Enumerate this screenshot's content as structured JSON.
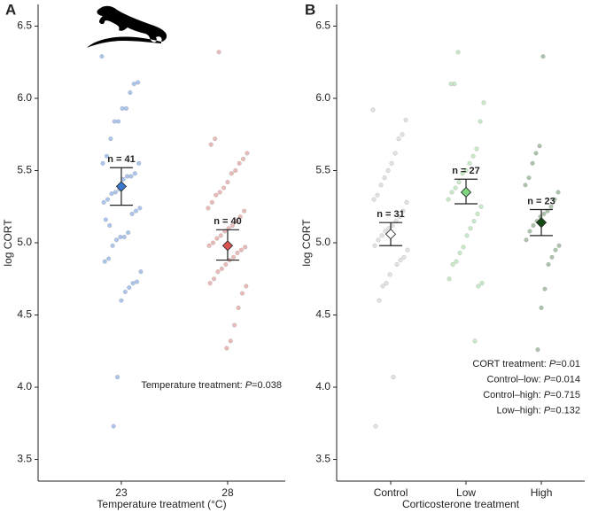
{
  "chart_data": [
    {
      "type": "strip",
      "title": "A",
      "xlabel": "Temperature treatment (°C)",
      "ylabel": "log CORT",
      "ylim": [
        3.35,
        6.65
      ],
      "yticks": [
        3.5,
        {
          "value": 4,
          "label": "4.0"
        },
        4.5,
        {
          "value": 5,
          "label": "5.0"
        },
        5.5,
        {
          "value": 6,
          "label": "6.0"
        },
        6.5
      ],
      "categories": [
        "23",
        "28"
      ],
      "groups": [
        {
          "color": "#3a78d0",
          "point_color": "#8fb2e6",
          "n_label": "n = 41",
          "mean": 5.39,
          "ci": [
            5.26,
            5.52
          ],
          "points": [
            6.29,
            6.11,
            6.1,
            6.04,
            5.93,
            5.93,
            5.84,
            5.84,
            5.72,
            5.6,
            5.55,
            5.55,
            5.48,
            5.46,
            5.46,
            5.44,
            5.37,
            5.35,
            5.34,
            5.3,
            5.28,
            5.24,
            5.22,
            5.2,
            5.07,
            5.04,
            5.04,
            5.02,
            4.98,
            4.89,
            4.87,
            4.8,
            4.73,
            4.72,
            4.69,
            4.66,
            4.6,
            4.07,
            3.73,
            5.12,
            5.16
          ]
        },
        {
          "color": "#d9534f",
          "point_color": "#e3a3a0",
          "n_label": "n = 40",
          "mean": 4.98,
          "ci": [
            4.88,
            5.09
          ],
          "points": [
            6.32,
            5.72,
            5.68,
            5.62,
            5.58,
            5.55,
            5.5,
            5.48,
            5.42,
            5.38,
            5.35,
            5.33,
            5.28,
            5.24,
            5.22,
            5.18,
            5.15,
            5.12,
            5.1,
            5.08,
            5.05,
            5.03,
            5.0,
            4.98,
            4.97,
            4.95,
            4.93,
            4.9,
            4.88,
            4.85,
            4.82,
            4.8,
            4.75,
            4.72,
            4.7,
            4.65,
            4.55,
            4.43,
            4.32,
            4.27
          ]
        }
      ],
      "annotations": [
        {
          "text": "Temperature treatment: ",
          "stat": "P",
          "value": "=0.038"
        }
      ]
    },
    {
      "type": "strip",
      "title": "B",
      "xlabel": "Corticosterone treatment",
      "ylabel": "log CORT",
      "ylim": [
        3.35,
        6.65
      ],
      "yticks": [
        3.5,
        {
          "value": 4,
          "label": "4.0"
        },
        4.5,
        {
          "value": 5,
          "label": "5.0"
        },
        5.5,
        {
          "value": 6,
          "label": "6.0"
        },
        6.5
      ],
      "categories": [
        "Control",
        "Low",
        "High"
      ],
      "groups": [
        {
          "color": "#ffffff",
          "point_color": "#d8d8d8",
          "n_label": "n = 31",
          "mean": 5.06,
          "ci": [
            4.98,
            5.14
          ],
          "points": [
            5.92,
            5.85,
            5.75,
            5.72,
            5.62,
            5.55,
            5.5,
            5.45,
            5.4,
            5.33,
            5.3,
            5.28,
            5.22,
            5.18,
            5.15,
            5.12,
            5.1,
            5.08,
            5.05,
            5.02,
            4.98,
            4.95,
            4.9,
            4.88,
            4.85,
            4.07,
            4.78,
            4.72,
            4.7,
            4.6,
            3.73
          ]
        },
        {
          "color": "#7fd67f",
          "point_color": "#b5e3b5",
          "n_label": "n = 27",
          "mean": 5.35,
          "ci": [
            5.27,
            5.44
          ],
          "points": [
            6.32,
            6.1,
            6.1,
            5.97,
            5.84,
            5.65,
            5.6,
            5.55,
            5.5,
            5.48,
            5.42,
            5.38,
            5.35,
            5.3,
            5.25,
            5.2,
            5.15,
            5.1,
            5.05,
            4.97,
            4.93,
            4.87,
            4.85,
            4.75,
            4.72,
            4.7,
            4.32
          ]
        },
        {
          "color": "#134d13",
          "point_color": "#8fb08f",
          "n_label": "n = 23",
          "mean": 5.14,
          "ci": [
            5.05,
            5.23
          ],
          "points": [
            6.29,
            5.67,
            5.62,
            5.55,
            5.45,
            5.4,
            5.35,
            5.3,
            5.25,
            5.22,
            5.2,
            5.18,
            5.15,
            5.12,
            5.08,
            5.02,
            4.98,
            4.95,
            4.9,
            4.85,
            4.68,
            4.55,
            4.26
          ]
        }
      ],
      "annotations": [
        {
          "text": "CORT treatment: ",
          "stat": "P",
          "value": "=0.01"
        },
        {
          "text": "Control–low: ",
          "stat": "P",
          "value": "=0.014"
        },
        {
          "text": "Control–high: ",
          "stat": "P",
          "value": "=0.715"
        },
        {
          "text": "Low–high: ",
          "stat": "P",
          "value": "=0.132"
        }
      ]
    }
  ]
}
